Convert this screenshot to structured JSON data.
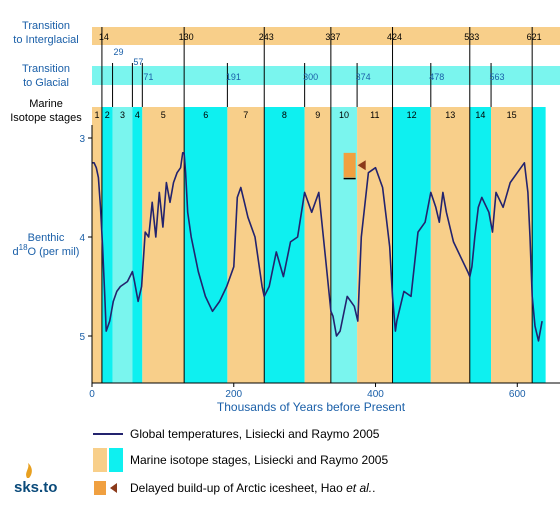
{
  "labels": {
    "interglacial": [
      "Transition",
      "to Interglacial"
    ],
    "glacial": [
      "Transition",
      "to Glacial"
    ],
    "stages": [
      "Marine",
      "Isotope stages"
    ],
    "ylabel_main": "Benthic",
    "ylabel_d": "d",
    "ylabel_sup": "18",
    "ylabel_rest": "O (per mil)",
    "xlabel": "Thousands of Years before Present"
  },
  "colors": {
    "glacial_fill": "#f8cf8a",
    "interglacial_fill": "#0ef0f0",
    "transition_fill": "#7af5ee",
    "interglacial_row": "#f8cf8a",
    "glacial_row": "#7af5ee",
    "curve": "#23236e",
    "text_blue": "#1a5fa8",
    "marker_orange": "#f0a040",
    "marker_brown": "#8b3a1a"
  },
  "chart_data": {
    "type": "line",
    "xlabel": "Thousands of Years before Present",
    "ylabel": "Benthic d18O (per mil)",
    "xlim": [
      0,
      635
    ],
    "ylim": [
      5.4,
      2.9
    ],
    "x_ticks": [
      0,
      200,
      400,
      600
    ],
    "y_ticks": [
      3,
      4,
      5
    ],
    "interglacial_transitions": [
      14,
      130,
      243,
      337,
      424,
      533,
      621
    ],
    "glacial_transitions": [
      29,
      57,
      71,
      191,
      300,
      374,
      478,
      563
    ],
    "interglacial_tick_labels": [
      "14",
      "130",
      "243",
      "337",
      "424",
      "533",
      "621"
    ],
    "glacial_tick_labels": [
      "29",
      "57",
      "71",
      "191",
      "300",
      "374",
      "478",
      "563"
    ],
    "marine_isotope_stages": [
      {
        "label": "1",
        "start": 0,
        "end": 14,
        "type": "glacial"
      },
      {
        "label": "2",
        "start": 14,
        "end": 29,
        "type": "interglacial"
      },
      {
        "label": "3",
        "start": 29,
        "end": 57,
        "type": "transition"
      },
      {
        "label": "4",
        "start": 57,
        "end": 71,
        "type": "interglacial"
      },
      {
        "label": "5",
        "start": 71,
        "end": 130,
        "type": "glacial"
      },
      {
        "label": "6",
        "start": 130,
        "end": 191,
        "type": "interglacial"
      },
      {
        "label": "7",
        "start": 191,
        "end": 243,
        "type": "glacial"
      },
      {
        "label": "8",
        "start": 243,
        "end": 300,
        "type": "interglacial"
      },
      {
        "label": "9",
        "start": 300,
        "end": 337,
        "type": "glacial"
      },
      {
        "label": "10",
        "start": 337,
        "end": 374,
        "type": "transition"
      },
      {
        "label": "11",
        "start": 374,
        "end": 424,
        "type": "glacial"
      },
      {
        "label": "12",
        "start": 424,
        "end": 478,
        "type": "interglacial"
      },
      {
        "label": "13",
        "start": 478,
        "end": 533,
        "type": "glacial"
      },
      {
        "label": "14",
        "start": 533,
        "end": 563,
        "type": "interglacial"
      },
      {
        "label": "15",
        "start": 563,
        "end": 621,
        "type": "glacial"
      },
      {
        "label": "",
        "start": 621,
        "end": 640,
        "type": "interglacial"
      }
    ],
    "series": [
      {
        "name": "Global temperatures, Lisiecki and Raymo 2005",
        "x": [
          0,
          3,
          6,
          9,
          12,
          15,
          18,
          20,
          25,
          30,
          35,
          40,
          50,
          57,
          60,
          65,
          70,
          75,
          80,
          85,
          90,
          95,
          100,
          105,
          110,
          115,
          120,
          125,
          128,
          130,
          132,
          135,
          140,
          150,
          160,
          170,
          180,
          190,
          200,
          205,
          210,
          215,
          220,
          230,
          240,
          243,
          250,
          260,
          270,
          280,
          290,
          300,
          310,
          320,
          330,
          335,
          337,
          340,
          345,
          350,
          360,
          370,
          375,
          380,
          390,
          400,
          410,
          415,
          420,
          424,
          428,
          430,
          440,
          450,
          460,
          470,
          478,
          485,
          490,
          495,
          500,
          510,
          520,
          530,
          533,
          536,
          540,
          545,
          550,
          560,
          565,
          570,
          580,
          590,
          600,
          610,
          615,
          618,
          621,
          625,
          630,
          635
        ],
        "values": [
          3.25,
          3.25,
          3.3,
          3.4,
          3.7,
          4.1,
          4.6,
          4.95,
          4.85,
          4.65,
          4.55,
          4.5,
          4.45,
          4.35,
          4.45,
          4.65,
          4.5,
          3.95,
          4.0,
          3.65,
          4.0,
          3.55,
          3.9,
          3.45,
          3.65,
          3.45,
          3.35,
          3.3,
          3.15,
          3.15,
          3.35,
          3.75,
          4.0,
          4.35,
          4.6,
          4.75,
          4.65,
          4.5,
          4.3,
          3.6,
          3.5,
          3.65,
          3.8,
          4.0,
          4.5,
          4.6,
          4.5,
          4.15,
          4.4,
          4.05,
          4.0,
          3.55,
          3.75,
          3.55,
          4.25,
          4.6,
          4.75,
          4.8,
          5.0,
          4.95,
          4.6,
          4.7,
          4.85,
          4.0,
          3.35,
          3.3,
          3.5,
          3.8,
          4.1,
          4.6,
          4.95,
          4.85,
          4.55,
          4.6,
          3.95,
          3.85,
          3.55,
          3.7,
          3.85,
          3.55,
          3.75,
          4.05,
          4.2,
          4.35,
          4.4,
          4.3,
          4.0,
          3.7,
          3.6,
          3.75,
          3.95,
          3.55,
          3.7,
          3.45,
          3.35,
          3.25,
          3.55,
          4.0,
          4.6,
          4.9,
          5.05,
          4.85
        ]
      }
    ],
    "marker": {
      "name": "Delayed build-up of Arctic icesheet, Hao et al.",
      "x_start": 355,
      "x_end": 372,
      "y_top": 3.15,
      "y_bottom": 3.4
    },
    "legend": [
      {
        "text": "Global temperatures, Lisiecki and Raymo 2005",
        "kind": "line"
      },
      {
        "text": "Marine isotope stages, Lisiecki and Raymo 2005",
        "kind": "swatch"
      },
      {
        "text": "Delayed build-up of Arctic icesheet, Hao",
        "italic": "et al.",
        "kind": "marker"
      }
    ]
  },
  "legend_items": {
    "line_label": "Global temperatures, Lisiecki and Raymo 2005",
    "swatch_label": "Marine isotope stages, Lisiecki and Raymo 2005",
    "marker_label": "Delayed build-up of Arctic icesheet, Hao ",
    "marker_label_italic": "et al."
  },
  "logo": "sks.to"
}
